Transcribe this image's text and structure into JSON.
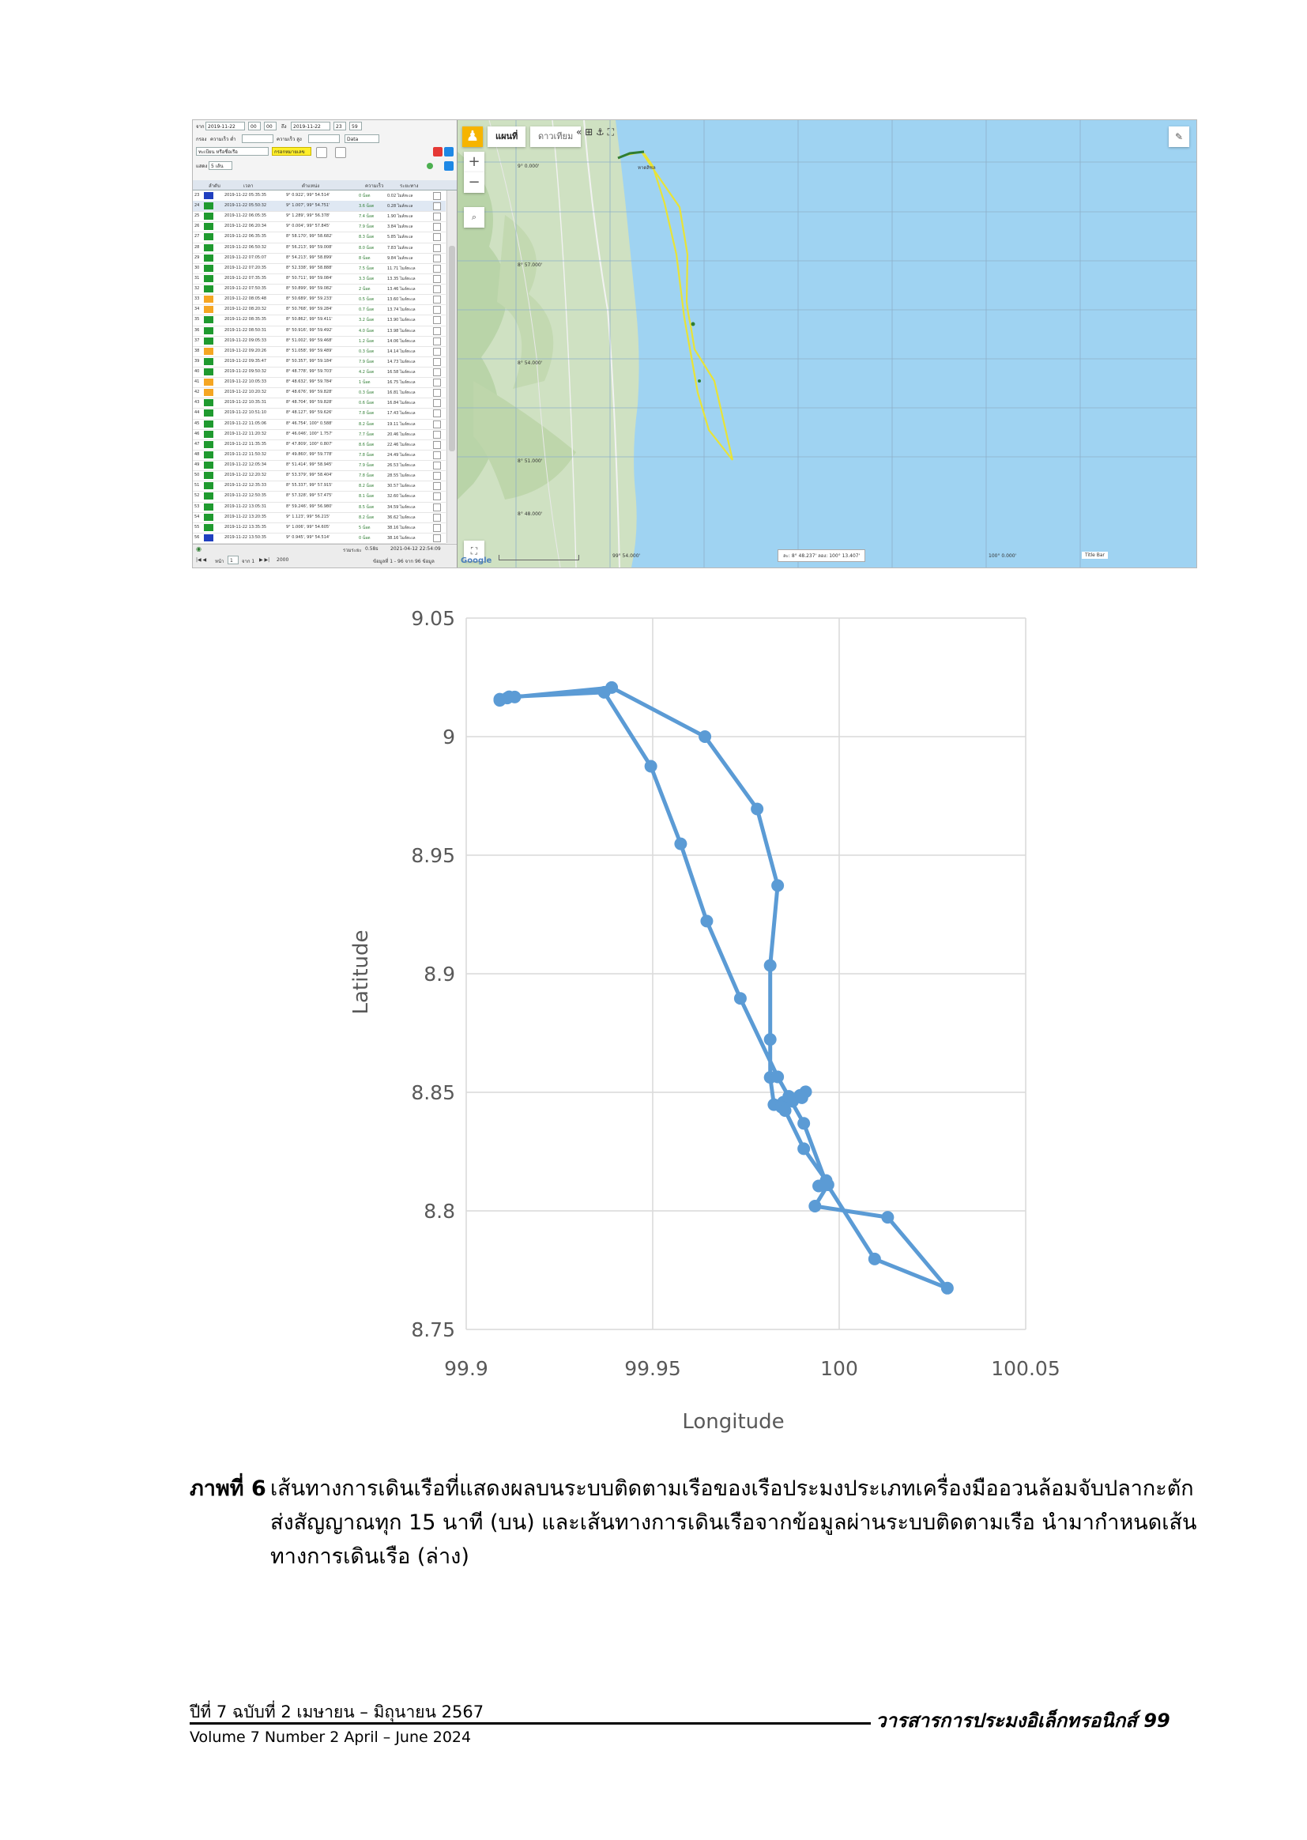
{
  "screenshot": {
    "left_panel": {
      "from_label": "จาก",
      "from_date": "2019-11-22",
      "from_hour": "00",
      "from_min": "00",
      "to_label": "ถึง",
      "to_date": "2019-11-22",
      "to_hour": "23",
      "to_min": "59",
      "speed_label": "กรอง",
      "speed_min_label": "ความเร็ว ต่ำ",
      "speed_max_label": "ความเร็ว สูง",
      "data_select": "Data",
      "vessel_select": "ทะเบียน หรือชื่อเรือ",
      "vessel_name": "กรอกหมายเลข",
      "display_label": "แสดง",
      "display_value": "5 เส้น",
      "headers": [
        "ลำดับ",
        "เวลา",
        "ตำแหน่ง",
        "ความเร็ว",
        "ระยะทาง"
      ],
      "rows": [
        {
          "n": "23",
          "c": "#1f3fbf",
          "t": "2019-11-22 05:35:35",
          "p": "9° 0.922', 99° 54.514'",
          "s": "0 น็อต",
          "d": "0.02 ไมล์ทะเล"
        },
        {
          "n": "24",
          "c": "#1f9a2f",
          "t": "2019-11-22 05:50:32",
          "p": "9° 1.007', 99° 54.751'",
          "s": "3.6 น็อต",
          "d": "0.28 ไมล์ทะเล"
        },
        {
          "n": "25",
          "c": "#1f9a2f",
          "t": "2019-11-22 06:05:35",
          "p": "9° 1.289', 99° 56.378'",
          "s": "7.4 น็อต",
          "d": "1.90 ไมล์ทะเล"
        },
        {
          "n": "26",
          "c": "#1f9a2f",
          "t": "2019-11-22 06:20:34",
          "p": "9° 0.004', 99° 57.845'",
          "s": "7.9 น็อต",
          "d": "3.84 ไมล์ทะเล"
        },
        {
          "n": "27",
          "c": "#1f9a2f",
          "t": "2019-11-22 06:35:35",
          "p": "8° 58.170', 99° 58.682'",
          "s": "8.3 น็อต",
          "d": "5.85 ไมล์ทะเล"
        },
        {
          "n": "28",
          "c": "#1f9a2f",
          "t": "2019-11-22 06:50:32",
          "p": "8° 56.213', 99° 59.008'",
          "s": "8.0 น็อต",
          "d": "7.83 ไมล์ทะเล"
        },
        {
          "n": "29",
          "c": "#1f9a2f",
          "t": "2019-11-22 07:05:07",
          "p": "8° 54.213', 99° 58.899'",
          "s": "8 น็อต",
          "d": "9.84 ไมล์ทะเล"
        },
        {
          "n": "30",
          "c": "#1f9a2f",
          "t": "2019-11-22 07:20:35",
          "p": "8° 52.338', 99° 58.888'",
          "s": "7.5 น็อต",
          "d": "11.71 ไมล์ทะเล"
        },
        {
          "n": "31",
          "c": "#1f9a2f",
          "t": "2019-11-22 07:35:35",
          "p": "8° 50.711', 99° 59.084'",
          "s": "3.3 น็อต",
          "d": "13.35 ไมล์ทะเล"
        },
        {
          "n": "32",
          "c": "#1f9a2f",
          "t": "2019-11-22 07:50:35",
          "p": "8° 50.899', 99° 59.082'",
          "s": "2 น็อต",
          "d": "13.46 ไมล์ทะเล"
        },
        {
          "n": "33",
          "c": "#f5a623",
          "t": "2019-11-22 08:05:48",
          "p": "8° 50.689', 99° 59.233'",
          "s": "0.5 น็อต",
          "d": "13.60 ไมล์ทะเล"
        },
        {
          "n": "34",
          "c": "#f5a623",
          "t": "2019-11-22 08:20:32",
          "p": "8° 50.768', 99° 59.284'",
          "s": "0.7 น็อต",
          "d": "13.74 ไมล์ทะเล"
        },
        {
          "n": "35",
          "c": "#1f9a2f",
          "t": "2019-11-22 08:35:35",
          "p": "8° 50.862', 99° 59.411'",
          "s": "3.2 น็อต",
          "d": "13.90 ไมล์ทะเล"
        },
        {
          "n": "36",
          "c": "#1f9a2f",
          "t": "2019-11-22 08:50:31",
          "p": "8° 50.916', 99° 59.492'",
          "s": "4.0 น็อต",
          "d": "13.98 ไมล์ทะเล"
        },
        {
          "n": "37",
          "c": "#1f9a2f",
          "t": "2019-11-22 09:05:33",
          "p": "8° 51.002', 99° 59.468'",
          "s": "1.2 น็อต",
          "d": "14.06 ไมล์ทะเล"
        },
        {
          "n": "38",
          "c": "#f5a623",
          "t": "2019-11-22 09:20:26",
          "p": "8° 51.058', 99° 59.489'",
          "s": "0.3 น็อต",
          "d": "14.14 ไมล์ทะเล"
        },
        {
          "n": "39",
          "c": "#1f9a2f",
          "t": "2019-11-22 09:35:47",
          "p": "8° 50.357', 99° 59.184'",
          "s": "7.9 น็อต",
          "d": "14.73 ไมล์ทะเล"
        },
        {
          "n": "40",
          "c": "#1f9a2f",
          "t": "2019-11-22 09:50:32",
          "p": "8° 48.778', 99° 59.703'",
          "s": "4.2 น็อต",
          "d": "16.58 ไมล์ทะเล"
        },
        {
          "n": "41",
          "c": "#f5a623",
          "t": "2019-11-22 10:05:33",
          "p": "8° 48.632', 99° 59.784'",
          "s": "1 น็อต",
          "d": "16.75 ไมล์ทะเล"
        },
        {
          "n": "42",
          "c": "#f5a623",
          "t": "2019-11-22 10:20:32",
          "p": "8° 48.676', 99° 59.828'",
          "s": "0.3 น็อต",
          "d": "16.81 ไมล์ทะเล"
        },
        {
          "n": "43",
          "c": "#1f9a2f",
          "t": "2019-11-22 10:35:31",
          "p": "8° 48.704', 99° 59.828'",
          "s": "0.6 น็อต",
          "d": "16.84 ไมล์ทะเล"
        },
        {
          "n": "44",
          "c": "#1f9a2f",
          "t": "2019-11-22 10:51:10",
          "p": "8° 48.127', 99° 59.626'",
          "s": "7.8 น็อต",
          "d": "17.43 ไมล์ทะเล"
        },
        {
          "n": "45",
          "c": "#1f9a2f",
          "t": "2019-11-22 11:05:06",
          "p": "8° 46.754', 100° 0.588'",
          "s": "8.2 น็อต",
          "d": "19.11 ไมล์ทะเล"
        },
        {
          "n": "46",
          "c": "#1f9a2f",
          "t": "2019-11-22 11:20:32",
          "p": "8° 46.046', 100° 1.757'",
          "s": "7.7 น็อต",
          "d": "20.46 ไมล์ทะเล"
        },
        {
          "n": "47",
          "c": "#1f9a2f",
          "t": "2019-11-22 11:35:35",
          "p": "8° 47.809', 100° 0.807'",
          "s": "8.6 น็อต",
          "d": "22.46 ไมล์ทะเล"
        },
        {
          "n": "48",
          "c": "#1f9a2f",
          "t": "2019-11-22 11:50:32",
          "p": "8° 49.860', 99° 59.778'",
          "s": "7.8 น็อต",
          "d": "24.49 ไมล์ทะเล"
        },
        {
          "n": "49",
          "c": "#1f9a2f",
          "t": "2019-11-22 12:05:34",
          "p": "8° 51.414', 99° 58.945'",
          "s": "7.9 น็อต",
          "d": "26.53 ไมล์ทะเล"
        },
        {
          "n": "50",
          "c": "#1f9a2f",
          "t": "2019-11-22 12:20:32",
          "p": "8° 53.379', 99° 58.404'",
          "s": "7.8 น็อต",
          "d": "28.55 ไมล์ทะเล"
        },
        {
          "n": "51",
          "c": "#1f9a2f",
          "t": "2019-11-22 12:35:33",
          "p": "8° 55.337', 99° 57.915'",
          "s": "8.2 น็อต",
          "d": "30.57 ไมล์ทะเล"
        },
        {
          "n": "52",
          "c": "#1f9a2f",
          "t": "2019-11-22 12:50:35",
          "p": "8° 57.328', 99° 57.475'",
          "s": "8.1 น็อต",
          "d": "32.60 ไมล์ทะเล"
        },
        {
          "n": "53",
          "c": "#1f9a2f",
          "t": "2019-11-22 13:05:31",
          "p": "8° 59.246', 99° 56.980'",
          "s": "8.5 น็อต",
          "d": "34.59 ไมล์ทะเล"
        },
        {
          "n": "54",
          "c": "#1f9a2f",
          "t": "2019-11-22 13:20:35",
          "p": "9° 1.123', 99° 56.215'",
          "s": "8.2 น็อต",
          "d": "36.62 ไมล์ทะเล"
        },
        {
          "n": "55",
          "c": "#1f9a2f",
          "t": "2019-11-22 13:35:35",
          "p": "9° 1.006', 99° 54.605'",
          "s": "5 น็อต",
          "d": "38.16 ไมล์ทะเล"
        },
        {
          "n": "56",
          "c": "#1f3fbf",
          "t": "2019-11-22 13:50:35",
          "p": "9° 0.945', 99° 54.514'",
          "s": "0 น็อต",
          "d": "38.16 ไมล์ทะเล"
        }
      ],
      "total_label": "รวมระยะ",
      "total_value": "0.58s",
      "total_time": "2021-04-12 22:54:09",
      "page_label": "หน้า",
      "page_value": "1",
      "page_of": "จาก 1",
      "page_size": "2000",
      "records": "ข้อมูลที่ 1 - 96 จาก 96 ข้อมูล"
    },
    "map": {
      "tab_map": "แผนที่",
      "tab_sat": "ดาวเทียม",
      "place_label": "หาดสิชล",
      "lat_labels": [
        "9° 0.000'",
        "8° 57.000'",
        "8° 54.000'",
        "8° 51.000'",
        "8° 48.000'"
      ],
      "lon_labels": [
        "99° 54.000'",
        "100° 0.000'"
      ],
      "cursor_readout": "ละ: 8° 48.237' ลอง: 100° 13.407'",
      "google": "Google",
      "title_bar": "Title Bar"
    }
  },
  "chart_data": {
    "type": "line",
    "xlabel": "Longitude",
    "ylabel": "Latitude",
    "xlim": [
      99.9,
      100.05
    ],
    "ylim": [
      8.75,
      9.05
    ],
    "x_ticks": [
      "99.9",
      "99.95",
      "100",
      "100.05"
    ],
    "y_ticks": [
      "9.05",
      "9",
      "8.95",
      "8.9",
      "8.85",
      "8.8",
      "8.75"
    ],
    "grid": true,
    "color": "#5b9bd5",
    "series": [
      {
        "x": [
          99.909,
          99.911,
          99.913,
          99.939,
          99.964,
          99.978,
          99.9835,
          99.9815,
          99.9815,
          99.9815,
          99.9825,
          99.985,
          99.9875,
          99.99,
          99.991,
          99.9895,
          99.9865,
          99.9845,
          99.9855,
          99.9905,
          99.9965,
          99.9945,
          99.997,
          99.9935,
          100.013,
          100.029,
          100.0095,
          99.9965,
          99.9905,
          99.9835,
          99.9735,
          99.9645,
          99.9575,
          99.9495,
          99.937,
          99.9115,
          99.909
        ],
        "y": [
          9.0153,
          9.0163,
          9.0167,
          9.0207,
          9.0,
          8.9695,
          8.9372,
          8.9035,
          8.8723,
          8.8563,
          8.8448,
          8.8458,
          8.8462,
          8.8477,
          8.8502,
          8.8487,
          8.8483,
          8.8438,
          8.8423,
          8.8262,
          8.8128,
          8.8105,
          8.811,
          8.802,
          8.7973,
          8.7674,
          8.7797,
          8.8118,
          8.8369,
          8.8565,
          8.8896,
          8.9222,
          8.9548,
          8.9875,
          9.0187,
          9.0168,
          9.0158
        ]
      }
    ]
  },
  "caption": {
    "label": "ภาพที่ 6",
    "text": "เส้นทางการเดินเรือที่แสดงผลบนระบบติดตามเรือของเรือประมงประเภทเครื่องมืออวนล้อมจับปลากะตัก ส่งสัญญาณทุก 15 นาที (บน) และเส้นทางการเดินเรือจากข้อมูลผ่านระบบติดตามเรือ นำมากำหนดเส้นทางการเดินเรือ (ล่าง)"
  },
  "footer": {
    "thai": "ปีที่ 7 ฉบับที่ 2 เมษายน – มิถุนายน 2567",
    "eng": "Volume 7 Number 2 April – June 2024",
    "journal": "วารสารการประมงอิเล็กทรอนิกส์",
    "page": "99"
  }
}
